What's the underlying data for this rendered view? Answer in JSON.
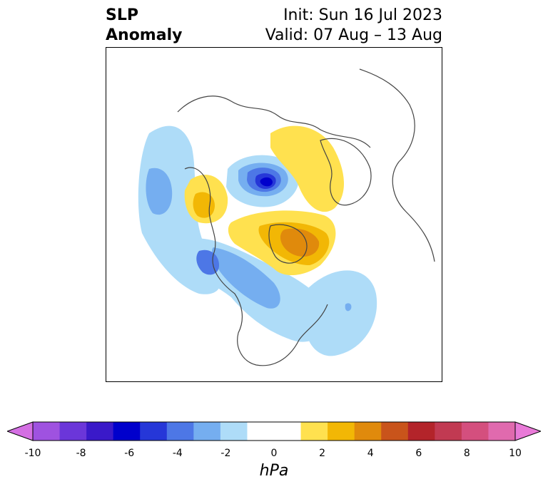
{
  "title": {
    "left_line1": "SLP",
    "left_line2": "Anomaly",
    "right_line1": "Init: Sun 16 Jul 2023",
    "right_line2": "Valid: 07 Aug – 13 Aug"
  },
  "colorbar": {
    "units": "hPa",
    "ticks": [
      "-10",
      "-8",
      "-6",
      "-4",
      "-2",
      "0",
      "2",
      "4",
      "6",
      "8",
      "10"
    ],
    "under_color": "#d46fe3",
    "over_color": "#e97ad8",
    "colors": [
      "#9f52e0",
      "#6b36d9",
      "#3a19c9",
      "#0000cc",
      "#2637d8",
      "#4d77e6",
      "#75aef0",
      "#aedcf8",
      "#ffffff",
      "#ffffff",
      "#ffe14f",
      "#f2b705",
      "#e08a0c",
      "#c9541b",
      "#b3242a",
      "#c13a52",
      "#d44f7e",
      "#e06aae"
    ]
  },
  "map": {
    "projection": "polar stereographic (North Pole)",
    "variable": "Sea level pressure anomaly"
  }
}
